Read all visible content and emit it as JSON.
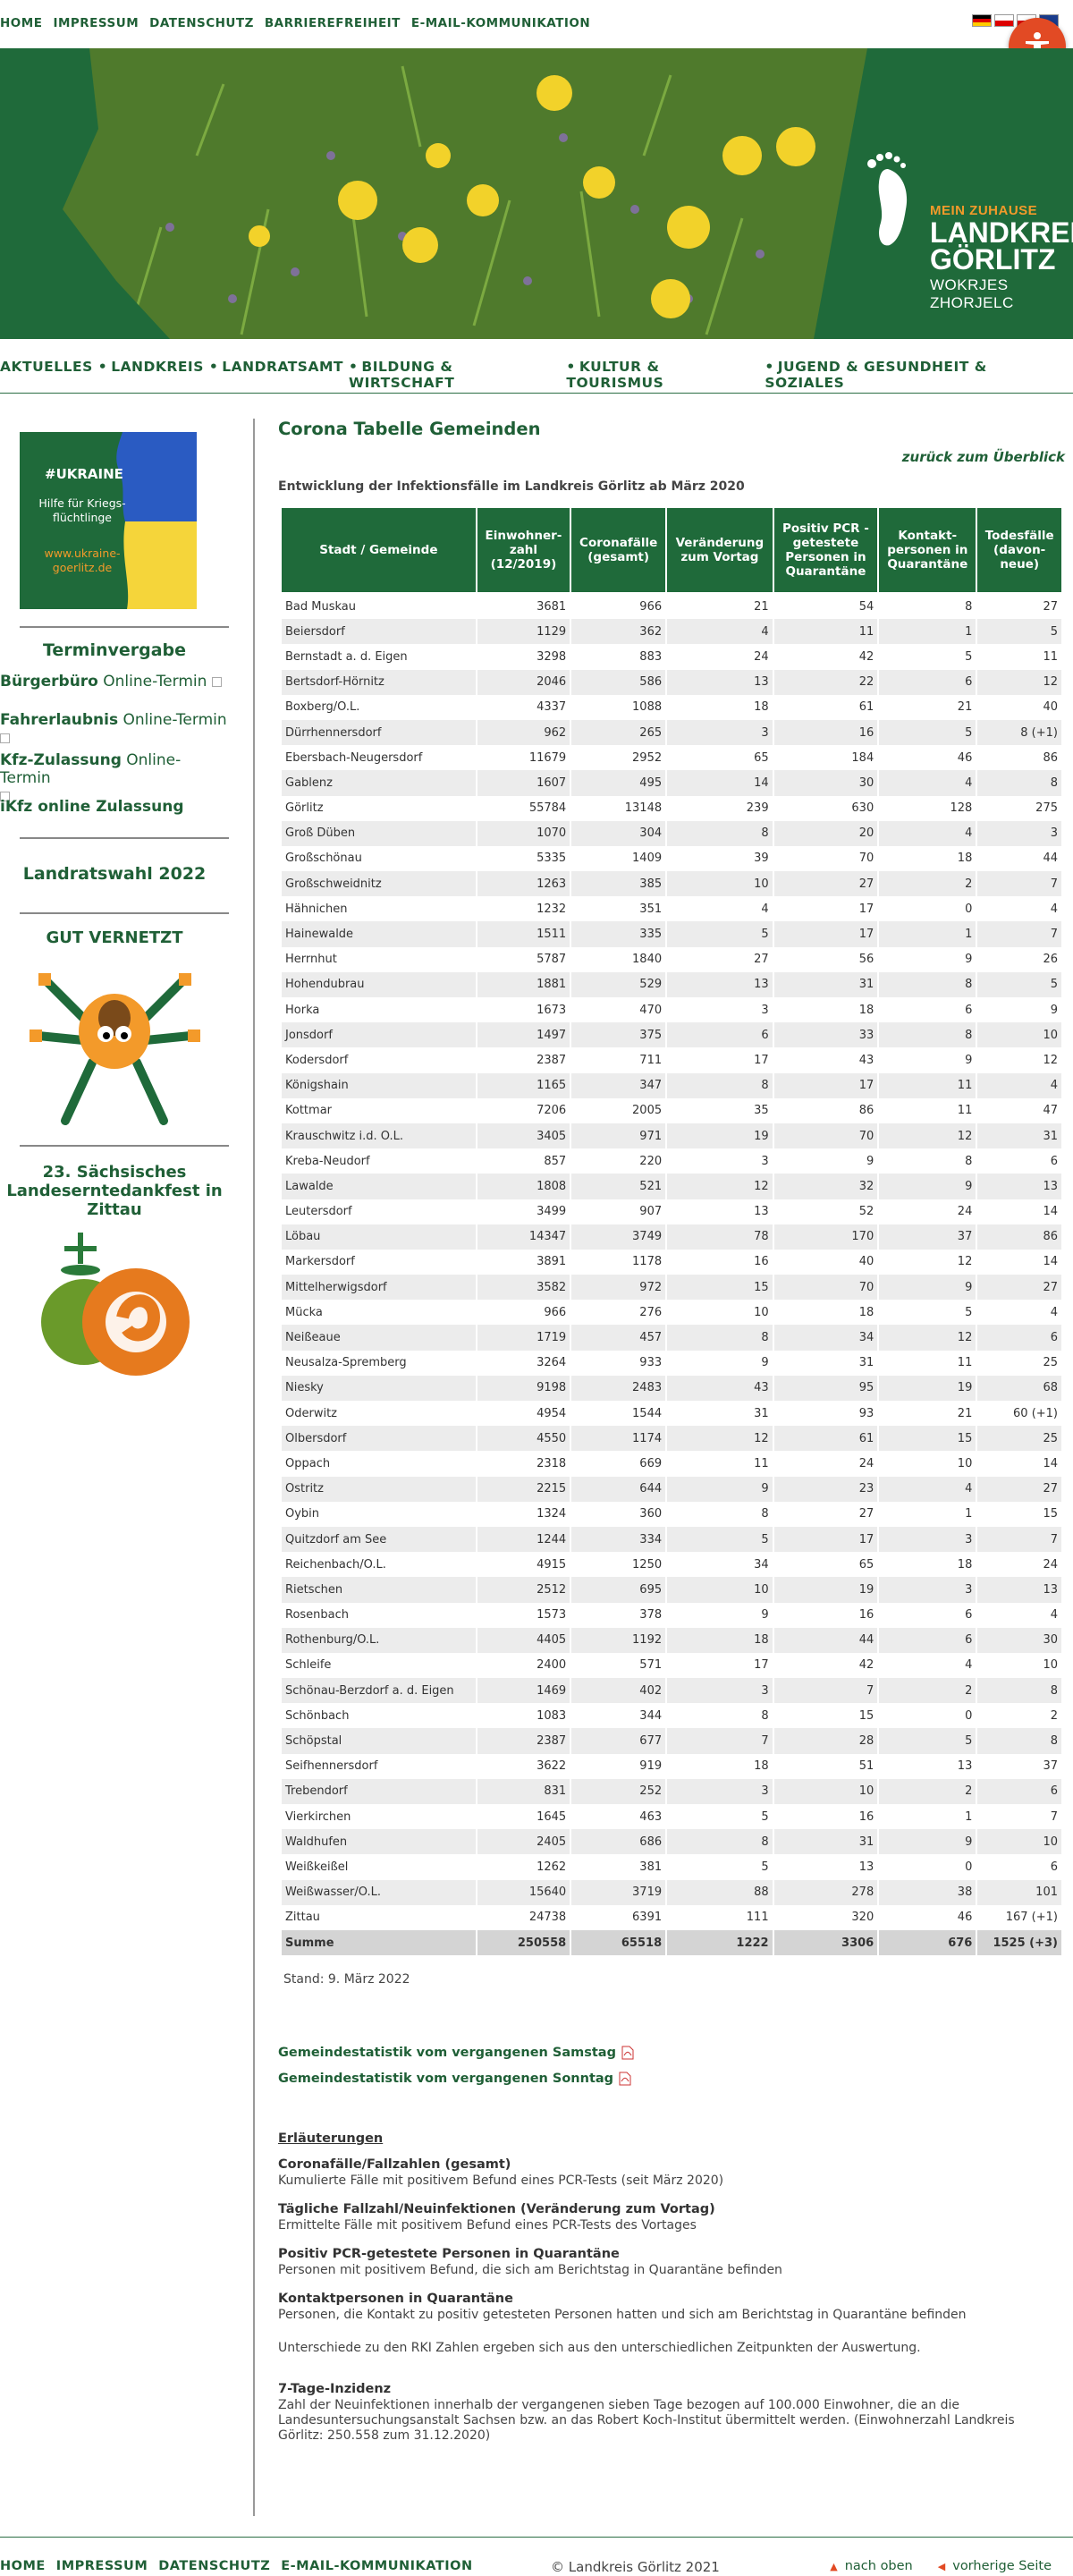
{
  "topnav": [
    "HOME",
    "IMPRESSUM",
    "DATENSCHUTZ",
    "BARRIEREFREIHEIT",
    "E-MAIL-KOMMUNIKATION"
  ],
  "banner": {
    "logo_line1": "MEIN ZUHAUSE",
    "logo_line2": "LANDKREIS",
    "logo_line3": "GÖRLITZ",
    "logo_line4": "WOKRJES ZHORJELC"
  },
  "mainnav": [
    "AKTUELLES",
    "LANDKREIS",
    "LANDRATSAMT",
    "BILDUNG & WIRTSCHAFT",
    "KULTUR & TOURISMUS",
    "JUGEND & GESUNDHEIT & SOZIALES"
  ],
  "sidebar": {
    "ukraine": {
      "tag": "#UKRAINE",
      "text1": "Hilfe für Kriegs-",
      "text2": "flüchtlinge",
      "url1": "www.ukraine-",
      "url2": "goerlitz.de"
    },
    "termin_title": "Terminvergabe",
    "links": [
      {
        "bold": "Bürgerbüro",
        "rest": "Online-Termin"
      },
      {
        "bold": "Fahrerlaubnis",
        "rest": "Online-Termin"
      },
      {
        "bold": "Kfz-Zulassung",
        "rest": "Online-Termin"
      },
      {
        "bold": "iKfz online Zulassung",
        "rest": ""
      }
    ],
    "landratswahl": "Landratswahl 2022",
    "gut_vernetzt": "GUT VERNETZT",
    "erntedank_1": "23. Sächsisches",
    "erntedank_2": "Landeserntedankfest in",
    "erntedank_3": "Zittau"
  },
  "main": {
    "title": "Corona Tabelle Gemeinden",
    "back": "zurück zum Überblick",
    "subtitle": "Entwicklung der Infektionsfälle im Landkreis Görlitz ab März 2020",
    "headers": [
      [
        "Stadt / Gemeinde"
      ],
      [
        "Einwohner-",
        "zahl",
        "(12/2019)"
      ],
      [
        "Coronafälle",
        "(gesamt)"
      ],
      [
        "Veränderung",
        "zum Vortag"
      ],
      [
        "Positiv PCR -",
        "getestete",
        "Personen in",
        "Quarantäne"
      ],
      [
        "Kontakt-",
        "personen in",
        "Quarantäne"
      ],
      [
        "Todesfälle",
        "(davon-",
        "neue)"
      ]
    ],
    "rows": [
      [
        "Bad Muskau",
        "3681",
        "966",
        "21",
        "54",
        "8",
        "27"
      ],
      [
        "Beiersdorf",
        "1129",
        "362",
        "4",
        "11",
        "1",
        "5"
      ],
      [
        "Bernstadt a. d. Eigen",
        "3298",
        "883",
        "24",
        "42",
        "5",
        "11"
      ],
      [
        "Bertsdorf-Hörnitz",
        "2046",
        "586",
        "13",
        "22",
        "6",
        "12"
      ],
      [
        "Boxberg/O.L.",
        "4337",
        "1088",
        "18",
        "61",
        "21",
        "40"
      ],
      [
        "Dürrhennersdorf",
        "962",
        "265",
        "3",
        "16",
        "5",
        "8 (+1)"
      ],
      [
        "Ebersbach-Neugersdorf",
        "11679",
        "2952",
        "65",
        "184",
        "46",
        "86"
      ],
      [
        "Gablenz",
        "1607",
        "495",
        "14",
        "30",
        "4",
        "8"
      ],
      [
        "Görlitz",
        "55784",
        "13148",
        "239",
        "630",
        "128",
        "275"
      ],
      [
        "Groß Düben",
        "1070",
        "304",
        "8",
        "20",
        "4",
        "3"
      ],
      [
        "Großschönau",
        "5335",
        "1409",
        "39",
        "70",
        "18",
        "44"
      ],
      [
        "Großschweidnitz",
        "1263",
        "385",
        "10",
        "27",
        "2",
        "7"
      ],
      [
        "Hähnichen",
        "1232",
        "351",
        "4",
        "17",
        "0",
        "4"
      ],
      [
        "Hainewalde",
        "1511",
        "335",
        "5",
        "17",
        "1",
        "7"
      ],
      [
        "Herrnhut",
        "5787",
        "1840",
        "27",
        "56",
        "9",
        "26"
      ],
      [
        "Hohendubrau",
        "1881",
        "529",
        "13",
        "31",
        "8",
        "5"
      ],
      [
        "Horka",
        "1673",
        "470",
        "3",
        "18",
        "6",
        "9"
      ],
      [
        "Jonsdorf",
        "1497",
        "375",
        "6",
        "33",
        "8",
        "10"
      ],
      [
        "Kodersdorf",
        "2387",
        "711",
        "17",
        "43",
        "9",
        "12"
      ],
      [
        "Königshain",
        "1165",
        "347",
        "8",
        "17",
        "11",
        "4"
      ],
      [
        "Kottmar",
        "7206",
        "2005",
        "35",
        "86",
        "11",
        "47"
      ],
      [
        "Krauschwitz i.d. O.L.",
        "3405",
        "971",
        "19",
        "70",
        "12",
        "31"
      ],
      [
        "Kreba-Neudorf",
        "857",
        "220",
        "3",
        "9",
        "8",
        "6"
      ],
      [
        "Lawalde",
        "1808",
        "521",
        "12",
        "32",
        "9",
        "13"
      ],
      [
        "Leutersdorf",
        "3499",
        "907",
        "13",
        "52",
        "24",
        "14"
      ],
      [
        "Löbau",
        "14347",
        "3749",
        "78",
        "170",
        "37",
        "86"
      ],
      [
        "Markersdorf",
        "3891",
        "1178",
        "16",
        "40",
        "12",
        "14"
      ],
      [
        "Mittelherwigsdorf",
        "3582",
        "972",
        "15",
        "70",
        "9",
        "27"
      ],
      [
        "Mücka",
        "966",
        "276",
        "10",
        "18",
        "5",
        "4"
      ],
      [
        "Neißeaue",
        "1719",
        "457",
        "8",
        "34",
        "12",
        "6"
      ],
      [
        "Neusalza-Spremberg",
        "3264",
        "933",
        "9",
        "31",
        "11",
        "25"
      ],
      [
        "Niesky",
        "9198",
        "2483",
        "43",
        "95",
        "19",
        "68"
      ],
      [
        "Oderwitz",
        "4954",
        "1544",
        "31",
        "93",
        "21",
        "60 (+1)"
      ],
      [
        "Olbersdorf",
        "4550",
        "1174",
        "12",
        "61",
        "15",
        "25"
      ],
      [
        "Oppach",
        "2318",
        "669",
        "11",
        "24",
        "10",
        "14"
      ],
      [
        "Ostritz",
        "2215",
        "644",
        "9",
        "23",
        "4",
        "27"
      ],
      [
        "Oybin",
        "1324",
        "360",
        "8",
        "27",
        "1",
        "15"
      ],
      [
        "Quitzdorf am See",
        "1244",
        "334",
        "5",
        "17",
        "3",
        "7"
      ],
      [
        "Reichenbach/O.L.",
        "4915",
        "1250",
        "34",
        "65",
        "18",
        "24"
      ],
      [
        "Rietschen",
        "2512",
        "695",
        "10",
        "19",
        "3",
        "13"
      ],
      [
        "Rosenbach",
        "1573",
        "378",
        "9",
        "16",
        "6",
        "4"
      ],
      [
        "Rothenburg/O.L.",
        "4405",
        "1192",
        "18",
        "44",
        "6",
        "30"
      ],
      [
        "Schleife",
        "2400",
        "571",
        "17",
        "42",
        "4",
        "10"
      ],
      [
        "Schönau-Berzdorf a. d. Eigen",
        "1469",
        "402",
        "3",
        "7",
        "2",
        "8"
      ],
      [
        "Schönbach",
        "1083",
        "344",
        "8",
        "15",
        "0",
        "2"
      ],
      [
        "Schöpstal",
        "2387",
        "677",
        "7",
        "28",
        "5",
        "8"
      ],
      [
        "Seifhennersdorf",
        "3622",
        "919",
        "18",
        "51",
        "13",
        "37"
      ],
      [
        "Trebendorf",
        "831",
        "252",
        "3",
        "10",
        "2",
        "6"
      ],
      [
        "Vierkirchen",
        "1645",
        "463",
        "5",
        "16",
        "1",
        "7"
      ],
      [
        "Waldhufen",
        "2405",
        "686",
        "8",
        "31",
        "9",
        "10"
      ],
      [
        "Weißkeißel",
        "1262",
        "381",
        "5",
        "13",
        "0",
        "6"
      ],
      [
        "Weißwasser/O.L.",
        "15640",
        "3719",
        "88",
        "278",
        "38",
        "101"
      ],
      [
        "Zittau",
        "24738",
        "6391",
        "111",
        "320",
        "46",
        "167 (+1)"
      ]
    ],
    "sum": [
      "Summe",
      "250558",
      "65518",
      "1222",
      "3306",
      "676",
      "1525 (+3)"
    ],
    "stand": "Stand: 9. März 2022",
    "pdf_links": [
      "Gemeindestatistik vom vergangenen Samstag",
      "Gemeindestatistik vom vergangenen Sonntag"
    ],
    "expl_head": "Erläuterungen",
    "expl": [
      {
        "t": "Coronafälle/Fallzahlen (gesamt)",
        "d": "Kumulierte Fälle mit positivem Befund eines PCR-Tests (seit März 2020)"
      },
      {
        "t": "Tägliche Fallzahl/Neuinfektionen (Veränderung zum Vortag)",
        "d": "Ermittelte Fälle mit positivem Befund eines PCR-Tests des Vortages"
      },
      {
        "t": "Positiv PCR-getestete Personen in Quarantäne",
        "d": "Personen mit positivem Befund, die sich am Berichtstag in Quarantäne befinden"
      },
      {
        "t": "Kontaktpersonen in Quarantäne",
        "d": "Personen, die Kontakt zu positiv getesteten Personen hatten und sich am Berichtstag in Quarantäne befinden"
      }
    ],
    "rki_note": "Unterschiede zu den RKI Zahlen ergeben sich aus den unterschiedlichen Zeitpunkten der Auswertung.",
    "inzidenz_title": "7-Tage-Inzidenz",
    "inzidenz_text": "Zahl der Neuinfektionen innerhalb der vergangenen sieben Tage bezogen auf 100.000 Einwohner, die an die Landesuntersuchungsanstalt Sachsen bzw. an das Robert Koch-Institut übermittelt werden. (Einwohnerzahl Landkreis Görlitz: 250.558 zum 31.12.2020)"
  },
  "footer": {
    "links": [
      "HOME",
      "IMPRESSUM",
      "DATENSCHUTZ",
      "E-MAIL-KOMMUNIKATION"
    ],
    "copyright": "© Landkreis Görlitz 2021",
    "nach_oben": "nach oben",
    "vorherige": "vorherige Seite"
  }
}
